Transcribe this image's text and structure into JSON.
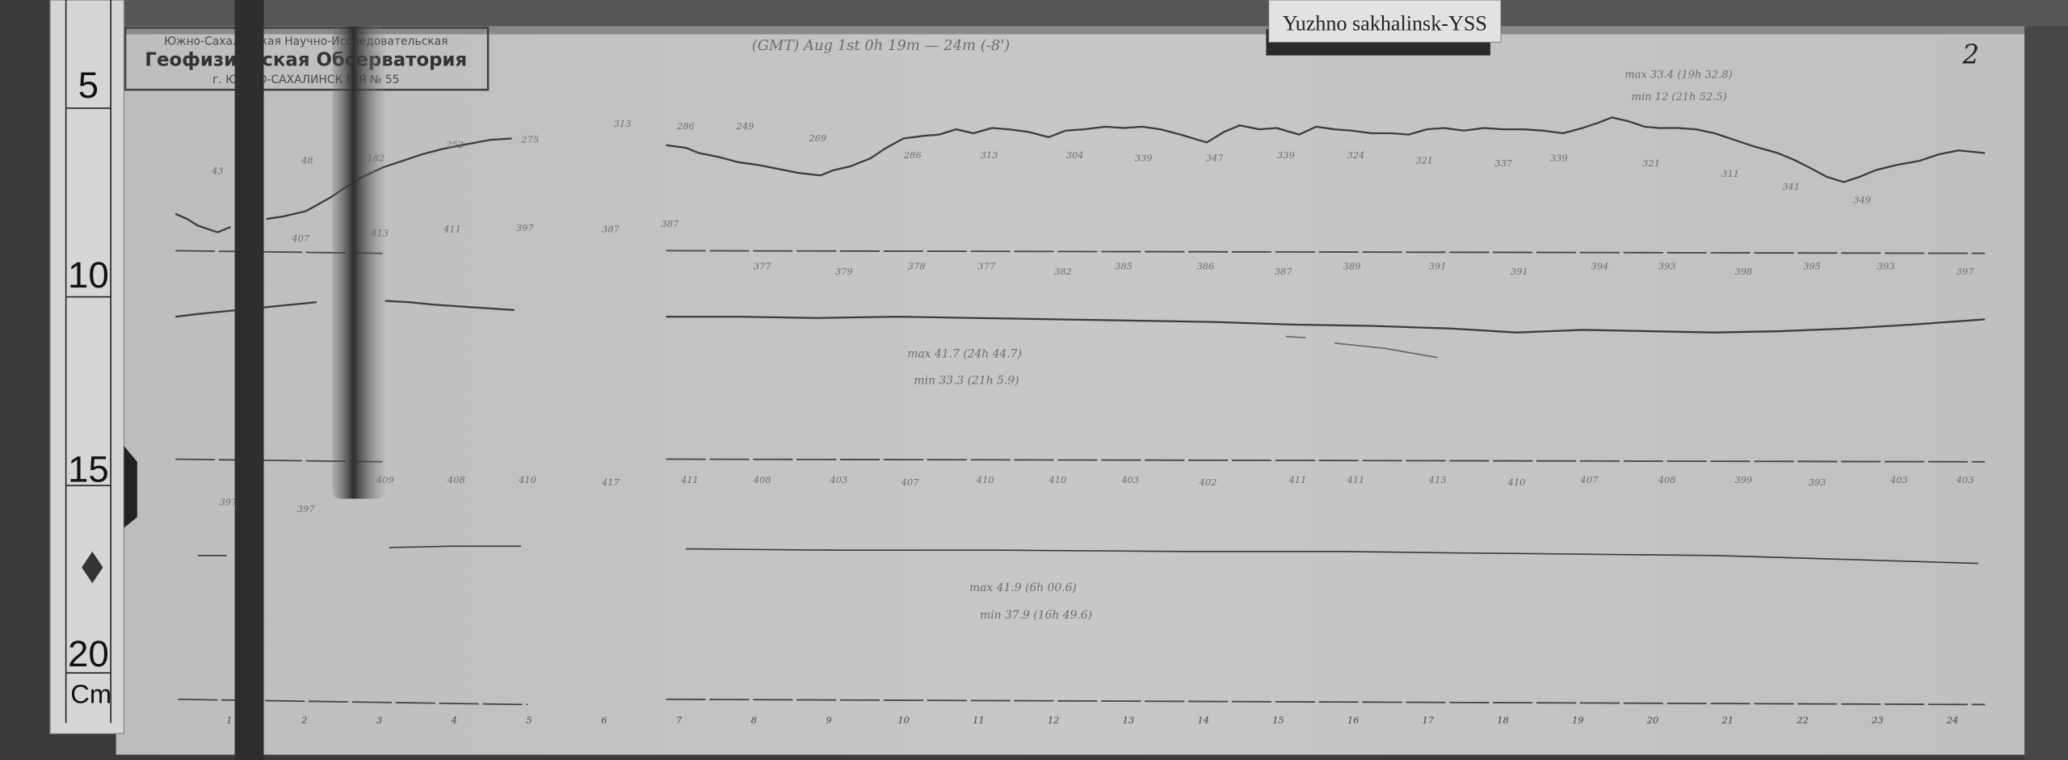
{
  "station_label": "Yuzhno sakhalinsk-YSS",
  "sheet_number": "2",
  "stamp": {
    "line1": "Южно-Сахалинская Научно-Исследовательская",
    "line2": "Геофизическая Обсерватория",
    "line3": "г. ЮЖНО-САХАЛИНСК П/Я № 55"
  },
  "title": "(GMT) Aug 1st 0h 19m — 24m (-8')",
  "ruler": {
    "labels": [
      "5",
      "10",
      "15",
      "20"
    ],
    "unit": "Cm"
  },
  "notes": {
    "top_right_max": "max 33.4 (19h 32.8)",
    "top_right_min": "min 12 (21h 52.5)",
    "middle_max": "max 41.7 (24h 44.7)",
    "middle_min": "min 33.3 (21h 5.9)",
    "lower_max": "max 41.9 (6h 00.6)",
    "lower_min": "min 37.9 (16h 49.6)"
  },
  "hour_labels": [
    "1",
    "2",
    "3",
    "4",
    "5",
    "6",
    "7",
    "8",
    "9",
    "10",
    "11",
    "12",
    "13",
    "14",
    "15",
    "16",
    "17",
    "18",
    "19",
    "20",
    "21",
    "22",
    "23",
    "24"
  ],
  "trace_readings": {
    "row1": [
      "43",
      "48",
      "182",
      "252",
      "275",
      "313",
      "286",
      "249",
      "269",
      "286",
      "313",
      "304",
      "339",
      "347",
      "339",
      "324",
      "321",
      "337",
      "339",
      "321",
      "311",
      "341",
      "349"
    ],
    "row1b": [
      "407",
      "413",
      "411",
      "397",
      "387",
      "387"
    ],
    "row2": [
      "377",
      "379",
      "378",
      "377",
      "382",
      "385",
      "386",
      "387",
      "389",
      "391",
      "391",
      "394",
      "393",
      "398",
      "395",
      "393",
      "397"
    ],
    "row3": [
      "397",
      "397",
      "409",
      "408",
      "410",
      "417",
      "411",
      "408",
      "403",
      "407",
      "410",
      "410",
      "403",
      "402",
      "411",
      "411",
      "413",
      "410",
      "407",
      "408",
      "399",
      "393",
      "403",
      "403"
    ]
  },
  "colors": {
    "paper": "#c4c4c4",
    "background": "#3a3a3a",
    "trace": "#3c3c3c",
    "pencil": "#6e6e6e"
  }
}
